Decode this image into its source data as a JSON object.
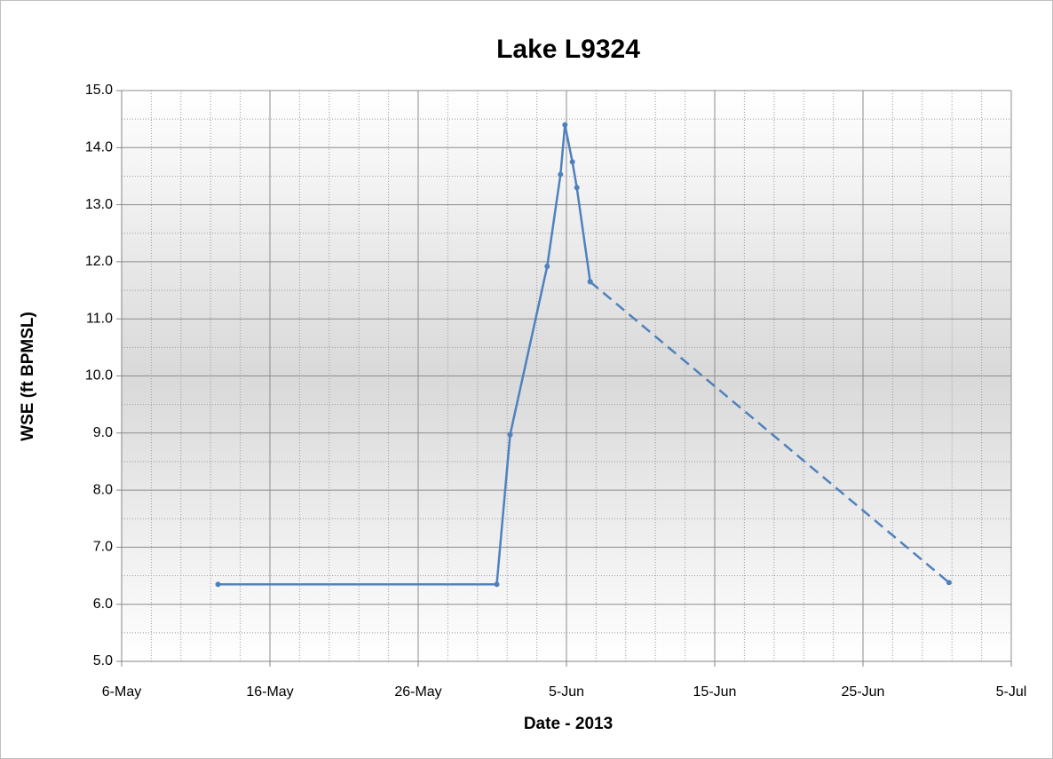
{
  "chart_data": {
    "type": "line",
    "title": "Lake L9324",
    "x_label": "Date - 2013",
    "y_label": "WSE (ft BPMSL)",
    "series": [
      {
        "color": "#4f81bd",
        "dash": false,
        "x": [
          132.5,
          151.3,
          152.2,
          154.7,
          155.6,
          155.9,
          156.4,
          156.7,
          157.6
        ],
        "values": [
          6.35,
          6.35,
          8.97,
          11.92,
          13.53,
          14.4,
          13.75,
          13.3,
          11.65
        ]
      },
      {
        "color": "#4f81bd",
        "dash": true,
        "x": [
          157.6,
          181.8
        ],
        "values": [
          11.65,
          6.38
        ]
      }
    ],
    "xlim": [
      126,
      186
    ],
    "xticks": [
      {
        "value": 126,
        "label": "6-May"
      },
      {
        "value": 136,
        "label": "16-May"
      },
      {
        "value": 146,
        "label": "26-May"
      },
      {
        "value": 156,
        "label": "5-Jun"
      },
      {
        "value": 166,
        "label": "15-Jun"
      },
      {
        "value": 176,
        "label": "25-Jun"
      },
      {
        "value": 186,
        "label": "5-Jul"
      }
    ],
    "ylim": [
      5,
      15
    ],
    "yticks": [
      {
        "value": 5,
        "label": "5.0"
      },
      {
        "value": 6,
        "label": "6.0"
      },
      {
        "value": 7,
        "label": "7.0"
      },
      {
        "value": 8,
        "label": "8.0"
      },
      {
        "value": 9,
        "label": "9.0"
      },
      {
        "value": 10,
        "label": "10.0"
      },
      {
        "value": 11,
        "label": "11.0"
      },
      {
        "value": 12,
        "label": "12.0"
      },
      {
        "value": 13,
        "label": "13.0"
      },
      {
        "value": 14,
        "label": "14.0"
      },
      {
        "value": 15,
        "label": "15.0"
      }
    ],
    "grid": true
  }
}
